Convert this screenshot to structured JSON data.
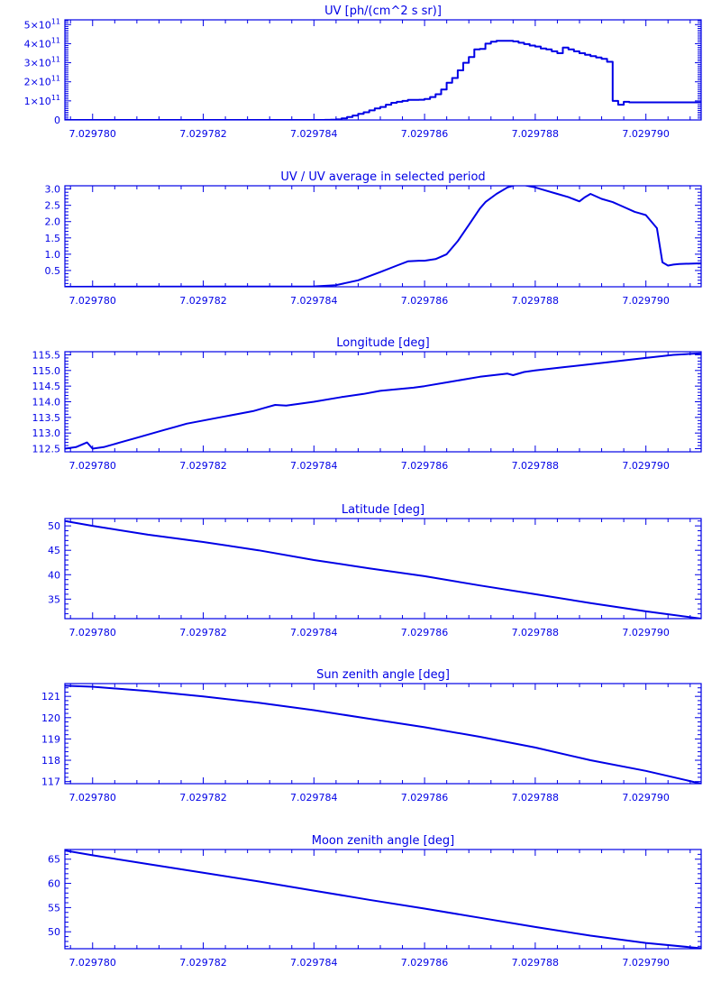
{
  "colors": {
    "plot": "#0000e6",
    "background": "#ffffff"
  },
  "chart_data": [
    {
      "type": "line",
      "title": "UV [ph/(cm^2 s sr)]",
      "step": true,
      "xlim": [
        7.0297795,
        7.029791
      ],
      "xticks": [
        "7.029780",
        "7.029782",
        "7.029784",
        "7.029786",
        "7.029788",
        "7.029790"
      ],
      "xtick_values": [
        7.02978,
        7.029782,
        7.029784,
        7.029786,
        7.029788,
        7.02979
      ],
      "ylim": [
        0,
        525000000000.0
      ],
      "yticks": [
        {
          "v": 0,
          "b": "0",
          "e": ""
        },
        {
          "v": 100000000000.0,
          "b": "1×10",
          "e": "11"
        },
        {
          "v": 200000000000.0,
          "b": "2×10",
          "e": "11"
        },
        {
          "v": 300000000000.0,
          "b": "3×10",
          "e": "11"
        },
        {
          "v": 400000000000.0,
          "b": "4×10",
          "e": "11"
        },
        {
          "v": 500000000000.0,
          "b": "5×10",
          "e": "11"
        }
      ],
      "minor_per_major": 10,
      "x": [
        7.0297795,
        7.0297842,
        7.0297843,
        7.0297844,
        7.0297845,
        7.0297846,
        7.0297847,
        7.0297848,
        7.0297849,
        7.029785,
        7.0297851,
        7.0297852,
        7.0297853,
        7.0297854,
        7.0297855,
        7.0297856,
        7.0297857,
        7.0297858,
        7.0297859,
        7.029786,
        7.0297861,
        7.0297862,
        7.0297863,
        7.0297864,
        7.0297865,
        7.0297866,
        7.0297867,
        7.0297868,
        7.0297869,
        7.029787,
        7.0297871,
        7.0297872,
        7.0297873,
        7.0297874,
        7.0297875,
        7.0297876,
        7.0297877,
        7.0297878,
        7.0297879,
        7.029788,
        7.0297881,
        7.0297882,
        7.0297883,
        7.0297884,
        7.0297885,
        7.0297886,
        7.0297887,
        7.0297888,
        7.0297889,
        7.029789,
        7.0297891,
        7.0297892,
        7.0297893,
        7.0297894,
        7.0297895,
        7.0297896,
        7.0297897,
        7.0297898,
        7.0297899,
        7.02979,
        7.0297901,
        7.0297902,
        7.0297903,
        7.0297904,
        7.0297905,
        7.0297906,
        7.0297907,
        7.0297908,
        7.0297909
      ],
      "y": [
        0,
        500000000.0,
        1000000000.0,
        3000000000.0,
        8000000000.0,
        15000000000.0,
        23000000000.0,
        32000000000.0,
        40000000000.0,
        50000000000.0,
        60000000000.0,
        68000000000.0,
        80000000000.0,
        90000000000.0,
        95000000000.0,
        100000000000.0,
        105000000000.0,
        105000000000.0,
        106000000000.0,
        110000000000.0,
        120000000000.0,
        135000000000.0,
        160000000000.0,
        195000000000.0,
        220000000000.0,
        260000000000.0,
        300000000000.0,
        330000000000.0,
        370000000000.0,
        372000000000.0,
        400000000000.0,
        410000000000.0,
        415000000000.0,
        415000000000.0,
        415000000000.0,
        412000000000.0,
        405000000000.0,
        398000000000.0,
        390000000000.0,
        385000000000.0,
        375000000000.0,
        370000000000.0,
        360000000000.0,
        350000000000.0,
        380000000000.0,
        370000000000.0,
        360000000000.0,
        350000000000.0,
        342000000000.0,
        335000000000.0,
        328000000000.0,
        320000000000.0,
        305000000000.0,
        100000000000.0,
        80000000000.0,
        95000000000.0,
        92000000000.0,
        92000000000.0,
        92000000000.0,
        92000000000.0,
        92000000000.0,
        92000000000.0,
        92000000000.0,
        92000000000.0,
        92000000000.0,
        92000000000.0,
        92000000000.0,
        92000000000.0,
        92000000000.0
      ]
    },
    {
      "type": "line",
      "title": "UV / UV average in selected period",
      "xlim": [
        7.0297795,
        7.029791
      ],
      "xticks": [
        "7.029780",
        "7.029782",
        "7.029784",
        "7.029786",
        "7.029788",
        "7.029790"
      ],
      "xtick_values": [
        7.02978,
        7.029782,
        7.029784,
        7.029786,
        7.029788,
        7.02979
      ],
      "ylim": [
        0,
        3.1
      ],
      "yticks": [
        {
          "v": 0.5,
          "b": "0.5",
          "e": ""
        },
        {
          "v": 1.0,
          "b": "1.0",
          "e": ""
        },
        {
          "v": 1.5,
          "b": "1.5",
          "e": ""
        },
        {
          "v": 2.0,
          "b": "2.0",
          "e": ""
        },
        {
          "v": 2.5,
          "b": "2.5",
          "e": ""
        },
        {
          "v": 3.0,
          "b": "3.0",
          "e": ""
        }
      ],
      "minor_per_major": 5,
      "x": [
        7.0297795,
        7.029784,
        7.0297844,
        7.0297848,
        7.0297852,
        7.0297855,
        7.0297857,
        7.0297859,
        7.029786,
        7.0297862,
        7.0297864,
        7.0297866,
        7.0297868,
        7.029787,
        7.0297871,
        7.0297873,
        7.0297875,
        7.0297877,
        7.0297878,
        7.029788,
        7.0297882,
        7.0297884,
        7.0297886,
        7.0297888,
        7.0297889,
        7.029789,
        7.0297892,
        7.0297894,
        7.0297896,
        7.0297898,
        7.0297899,
        7.02979,
        7.0297902,
        7.0297903,
        7.0297904,
        7.0297905,
        7.0297906,
        7.029791
      ],
      "y": [
        0.0,
        0.01,
        0.05,
        0.2,
        0.45,
        0.65,
        0.78,
        0.8,
        0.8,
        0.85,
        1.0,
        1.4,
        1.9,
        2.4,
        2.6,
        2.85,
        3.05,
        3.15,
        3.12,
        3.05,
        2.95,
        2.85,
        2.75,
        2.62,
        2.75,
        2.85,
        2.7,
        2.6,
        2.45,
        2.3,
        2.25,
        2.2,
        1.8,
        0.75,
        0.65,
        0.68,
        0.7,
        0.72
      ]
    },
    {
      "type": "line",
      "title": "Longitude [deg]",
      "xlim": [
        7.0297795,
        7.029791
      ],
      "xticks": [
        "7.029780",
        "7.029782",
        "7.029784",
        "7.029786",
        "7.029788",
        "7.029790"
      ],
      "xtick_values": [
        7.02978,
        7.029782,
        7.029784,
        7.029786,
        7.029788,
        7.02979
      ],
      "ylim": [
        112.4,
        115.6
      ],
      "yticks": [
        {
          "v": 112.5,
          "b": "112.5",
          "e": ""
        },
        {
          "v": 113.0,
          "b": "113.0",
          "e": ""
        },
        {
          "v": 113.5,
          "b": "113.5",
          "e": ""
        },
        {
          "v": 114.0,
          "b": "114.0",
          "e": ""
        },
        {
          "v": 114.5,
          "b": "114.5",
          "e": ""
        },
        {
          "v": 115.0,
          "b": "115.0",
          "e": ""
        },
        {
          "v": 115.5,
          "b": "115.5",
          "e": ""
        }
      ],
      "minor_per_major": 5,
      "x": [
        7.0297795,
        7.0297797,
        7.0297799,
        7.02978,
        7.0297802,
        7.0297805,
        7.0297808,
        7.0297811,
        7.0297813,
        7.0297815,
        7.0297817,
        7.029782,
        7.0297823,
        7.0297826,
        7.0297829,
        7.0297831,
        7.0297833,
        7.0297835,
        7.029784,
        7.0297845,
        7.0297849,
        7.0297852,
        7.0297855,
        7.0297858,
        7.029786,
        7.0297865,
        7.029787,
        7.0297875,
        7.0297876,
        7.0297878,
        7.029788,
        7.0297885,
        7.029789,
        7.0297895,
        7.02979,
        7.0297905,
        7.029791
      ],
      "y": [
        112.5,
        112.55,
        112.7,
        112.5,
        112.55,
        112.7,
        112.85,
        113.0,
        113.1,
        113.2,
        113.3,
        113.4,
        113.5,
        113.6,
        113.7,
        113.8,
        113.9,
        113.88,
        114.0,
        114.15,
        114.25,
        114.35,
        114.4,
        114.45,
        114.5,
        114.65,
        114.8,
        114.9,
        114.85,
        114.95,
        115.0,
        115.1,
        115.2,
        115.3,
        115.4,
        115.5,
        115.55
      ]
    },
    {
      "type": "line",
      "title": "Latitude [deg]",
      "xlim": [
        7.0297795,
        7.029791
      ],
      "xticks": [
        "7.029780",
        "7.029782",
        "7.029784",
        "7.029786",
        "7.029788",
        "7.029790"
      ],
      "xtick_values": [
        7.02978,
        7.029782,
        7.029784,
        7.029786,
        7.029788,
        7.02979
      ],
      "ylim": [
        31,
        51.5
      ],
      "yticks": [
        {
          "v": 35,
          "b": "35",
          "e": ""
        },
        {
          "v": 40,
          "b": "40",
          "e": ""
        },
        {
          "v": 45,
          "b": "45",
          "e": ""
        },
        {
          "v": 50,
          "b": "50",
          "e": ""
        }
      ],
      "minor_per_major": 5,
      "x": [
        7.0297795,
        7.02978,
        7.029781,
        7.029782,
        7.029783,
        7.029784,
        7.029785,
        7.029786,
        7.029787,
        7.029788,
        7.029789,
        7.02979,
        7.029791
      ],
      "y": [
        51.0,
        50.0,
        48.2,
        46.7,
        45.0,
        43.0,
        41.3,
        39.7,
        37.8,
        36.0,
        34.2,
        32.5,
        31.0
      ]
    },
    {
      "type": "line",
      "title": "Sun zenith angle [deg]",
      "xlim": [
        7.0297795,
        7.029791
      ],
      "xticks": [
        "7.029780",
        "7.029782",
        "7.029784",
        "7.029786",
        "7.029788",
        "7.029790"
      ],
      "xtick_values": [
        7.02978,
        7.029782,
        7.029784,
        7.029786,
        7.029788,
        7.02979
      ],
      "ylim": [
        116.9,
        121.6
      ],
      "yticks": [
        {
          "v": 117,
          "b": "117",
          "e": ""
        },
        {
          "v": 118,
          "b": "118",
          "e": ""
        },
        {
          "v": 119,
          "b": "119",
          "e": ""
        },
        {
          "v": 120,
          "b": "120",
          "e": ""
        },
        {
          "v": 121,
          "b": "121",
          "e": ""
        }
      ],
      "minor_per_major": 5,
      "x": [
        7.0297795,
        7.02978,
        7.029781,
        7.029782,
        7.029783,
        7.029784,
        7.029785,
        7.029786,
        7.029787,
        7.029788,
        7.029789,
        7.02979,
        7.029791
      ],
      "y": [
        121.5,
        121.45,
        121.25,
        121.0,
        120.7,
        120.35,
        119.95,
        119.55,
        119.1,
        118.6,
        118.0,
        117.5,
        116.9
      ]
    },
    {
      "type": "line",
      "title": "Moon zenith angle [deg]",
      "xlim": [
        7.0297795,
        7.029791
      ],
      "xticks": [
        "7.029780",
        "7.029782",
        "7.029784",
        "7.029786",
        "7.029788",
        "7.029790"
      ],
      "xtick_values": [
        7.02978,
        7.029782,
        7.029784,
        7.029786,
        7.029788,
        7.02979
      ],
      "ylim": [
        46.5,
        67
      ],
      "yticks": [
        {
          "v": 50,
          "b": "50",
          "e": ""
        },
        {
          "v": 55,
          "b": "55",
          "e": ""
        },
        {
          "v": 60,
          "b": "60",
          "e": ""
        },
        {
          "v": 65,
          "b": "65",
          "e": ""
        }
      ],
      "minor_per_major": 5,
      "x": [
        7.0297795,
        7.02978,
        7.029781,
        7.029782,
        7.029783,
        7.029784,
        7.029785,
        7.029786,
        7.029787,
        7.029788,
        7.029789,
        7.02979,
        7.029791
      ],
      "y": [
        66.8,
        65.8,
        64.0,
        62.2,
        60.4,
        58.5,
        56.6,
        54.8,
        52.9,
        51.0,
        49.2,
        47.7,
        46.6
      ]
    }
  ]
}
